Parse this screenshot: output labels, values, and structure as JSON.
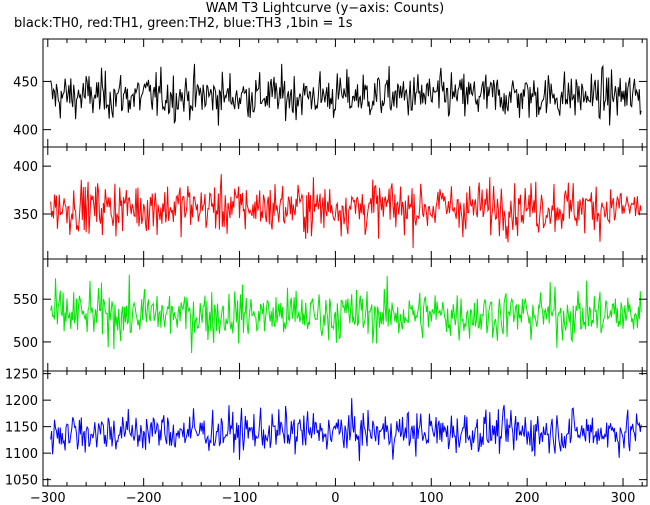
{
  "title": "WAM T3 Lightcurve (y−axis: Counts)",
  "subtitle": "black:TH0, red:TH1, green:TH2, blue:TH3 ,1bin = 1s",
  "chart_data": {
    "type": "line",
    "x_range": [
      -305,
      325
    ],
    "x_ticks": [
      -300,
      -200,
      -100,
      0,
      100,
      200,
      300
    ],
    "x_tick_labels": [
      "−300",
      "−200",
      "−100",
      "0",
      "100",
      "200",
      "300"
    ],
    "bin_seconds": 1,
    "panels": [
      {
        "name": "TH0",
        "color": "#000000",
        "ylim": [
          382,
          494
        ],
        "y_ticks": [
          400,
          450
        ],
        "y_tick_labels": [
          "400",
          "450"
        ],
        "mean": 435,
        "std": 17
      },
      {
        "name": "TH1",
        "color": "#ff0000",
        "ylim": [
          303,
          420
        ],
        "y_ticks": [
          350,
          400
        ],
        "y_tick_labels": [
          "350",
          "400"
        ],
        "mean": 357,
        "std": 19
      },
      {
        "name": "TH2",
        "color": "#00e600",
        "ylim": [
          466,
          597
        ],
        "y_ticks": [
          500,
          550
        ],
        "y_tick_labels": [
          "500",
          "550"
        ],
        "mean": 532,
        "std": 21
      },
      {
        "name": "TH3",
        "color": "#0000ff",
        "ylim": [
          1038,
          1255
        ],
        "y_ticks": [
          1050,
          1100,
          1150,
          1200,
          1250
        ],
        "y_tick_labels": [
          "1050",
          "1100",
          "1150",
          "1200",
          "1250"
        ],
        "mean": 1140,
        "std": 28
      }
    ]
  }
}
